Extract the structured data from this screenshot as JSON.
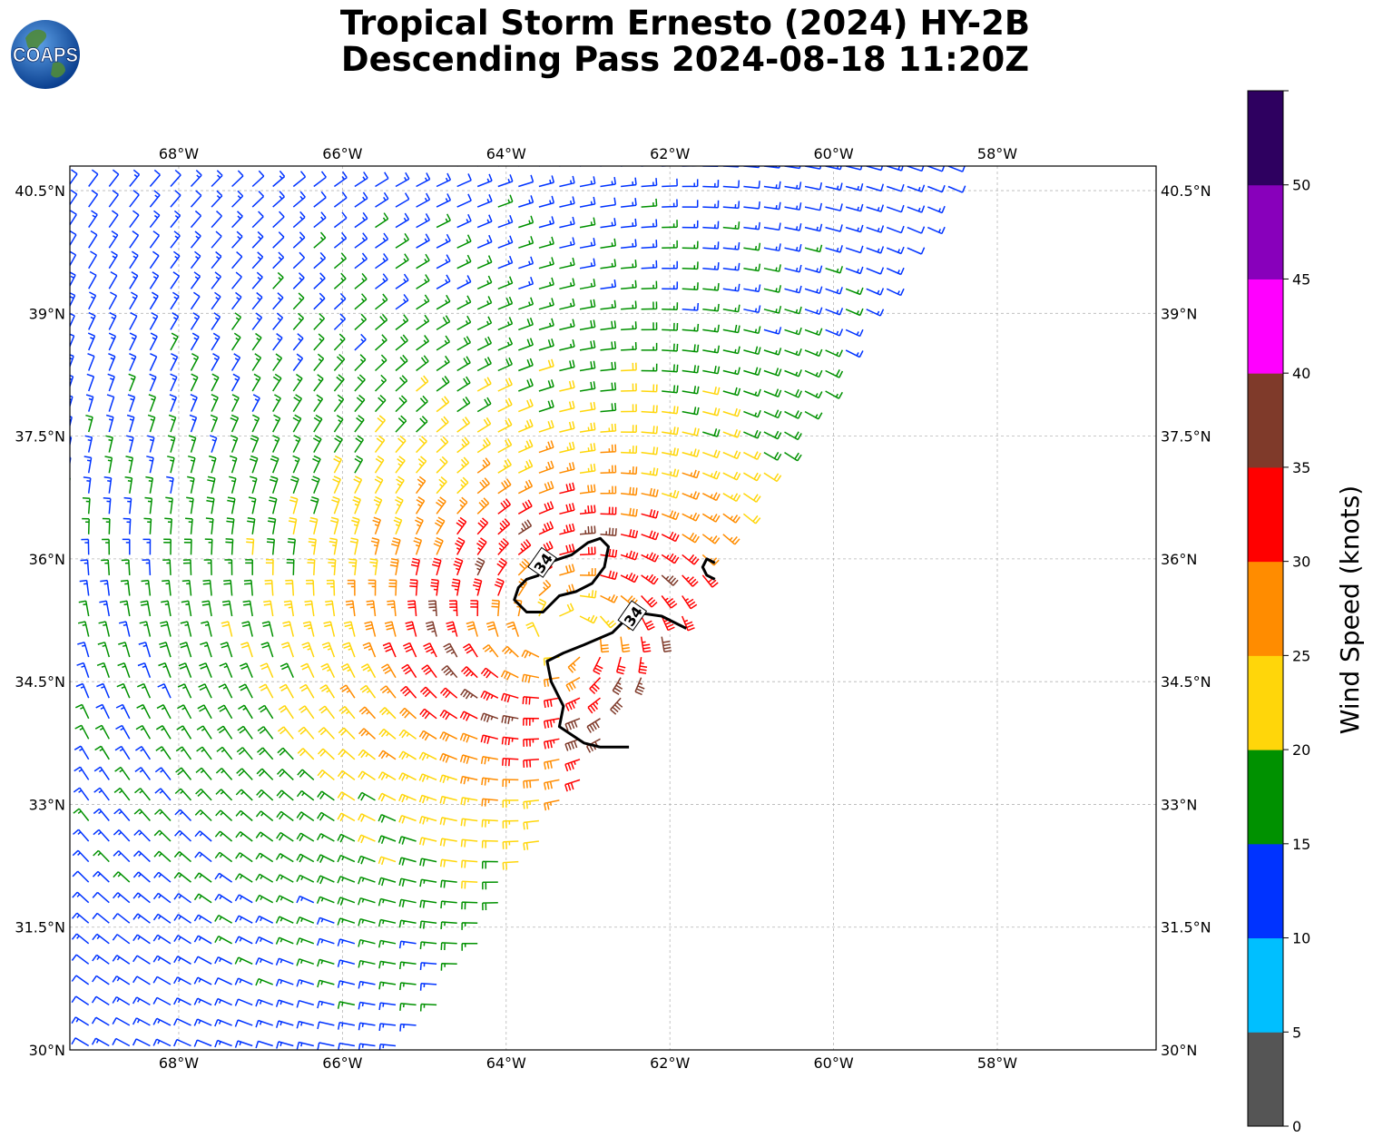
{
  "title": {
    "line1": "Tropical Storm Ernesto (2024) HY-2B",
    "line2": "Descending Pass 2024-08-18 11:20Z"
  },
  "logo": {
    "text": "COAPS",
    "icon": "globe-icon"
  },
  "map": {
    "lon_range": [
      -69.33,
      -56.06
    ],
    "lat_range": [
      30.0,
      40.8
    ],
    "lon_ticks": [
      {
        "value": -68,
        "label": "68°W"
      },
      {
        "value": -66,
        "label": "66°W"
      },
      {
        "value": -64,
        "label": "64°W"
      },
      {
        "value": -62,
        "label": "62°W"
      },
      {
        "value": -60,
        "label": "60°W"
      },
      {
        "value": -58,
        "label": "58°W"
      }
    ],
    "lat_ticks": [
      {
        "value": 30.0,
        "label": "30°N"
      },
      {
        "value": 31.5,
        "label": "31.5°N"
      },
      {
        "value": 33.0,
        "label": "33°N"
      },
      {
        "value": 34.5,
        "label": "34.5°N"
      },
      {
        "value": 36.0,
        "label": "36°N"
      },
      {
        "value": 37.5,
        "label": "37.5°N"
      },
      {
        "value": 39.0,
        "label": "39°N"
      },
      {
        "value": 40.5,
        "label": "40.5°N"
      }
    ],
    "gridlines": true,
    "storm_center": {
      "lon": -63.3,
      "lat": 35.1
    },
    "contour": {
      "level_label": "34",
      "label_positions": [
        {
          "lon": -63.55,
          "lat": 35.95
        },
        {
          "lon": -62.45,
          "lat": 35.3
        }
      ],
      "paths": [
        [
          [
            -63.6,
            35.8
          ],
          [
            -63.5,
            35.95
          ],
          [
            -63.2,
            36.05
          ],
          [
            -63.0,
            36.2
          ],
          [
            -62.85,
            36.25
          ],
          [
            -62.75,
            36.15
          ],
          [
            -62.8,
            35.9
          ],
          [
            -62.95,
            35.7
          ],
          [
            -63.15,
            35.6
          ],
          [
            -63.35,
            35.55
          ],
          [
            -63.55,
            35.35
          ],
          [
            -63.75,
            35.35
          ],
          [
            -63.9,
            35.5
          ],
          [
            -63.85,
            35.65
          ],
          [
            -63.75,
            35.75
          ],
          [
            -63.6,
            35.8
          ]
        ],
        [
          [
            -61.8,
            35.15
          ],
          [
            -62.1,
            35.3
          ],
          [
            -62.45,
            35.35
          ],
          [
            -62.7,
            35.1
          ],
          [
            -63.05,
            34.95
          ],
          [
            -63.3,
            34.85
          ],
          [
            -63.5,
            34.75
          ],
          [
            -63.45,
            34.5
          ],
          [
            -63.3,
            34.2
          ],
          [
            -63.35,
            33.95
          ],
          [
            -63.2,
            33.85
          ],
          [
            -63.05,
            33.75
          ],
          [
            -62.85,
            33.7
          ],
          [
            -62.5,
            33.7
          ]
        ],
        [
          [
            -61.45,
            35.95
          ],
          [
            -61.55,
            36.0
          ],
          [
            -61.6,
            35.9
          ],
          [
            -61.55,
            35.8
          ],
          [
            -61.45,
            35.75
          ]
        ]
      ]
    }
  },
  "colorbar": {
    "label": "Wind Speed (knots)",
    "ticks": [
      "0",
      "5",
      "10",
      "15",
      "20",
      "25",
      "30",
      "35",
      "40",
      "45",
      "50"
    ],
    "max": 55,
    "bins": [
      {
        "from": 0,
        "to": 5,
        "color": "#555555"
      },
      {
        "from": 5,
        "to": 10,
        "color": "#00bfff"
      },
      {
        "from": 10,
        "to": 15,
        "color": "#0033ff"
      },
      {
        "from": 15,
        "to": 20,
        "color": "#009100"
      },
      {
        "from": 20,
        "to": 25,
        "color": "#ffd60a"
      },
      {
        "from": 25,
        "to": 30,
        "color": "#ff8c00"
      },
      {
        "from": 30,
        "to": 35,
        "color": "#ff0000"
      },
      {
        "from": 35,
        "to": 40,
        "color": "#7f3a2a"
      },
      {
        "from": 40,
        "to": 45,
        "color": "#ff00ff"
      },
      {
        "from": 45,
        "to": 50,
        "color": "#8800bb"
      },
      {
        "from": 50,
        "to": 55,
        "color": "#2e0060"
      }
    ]
  }
}
